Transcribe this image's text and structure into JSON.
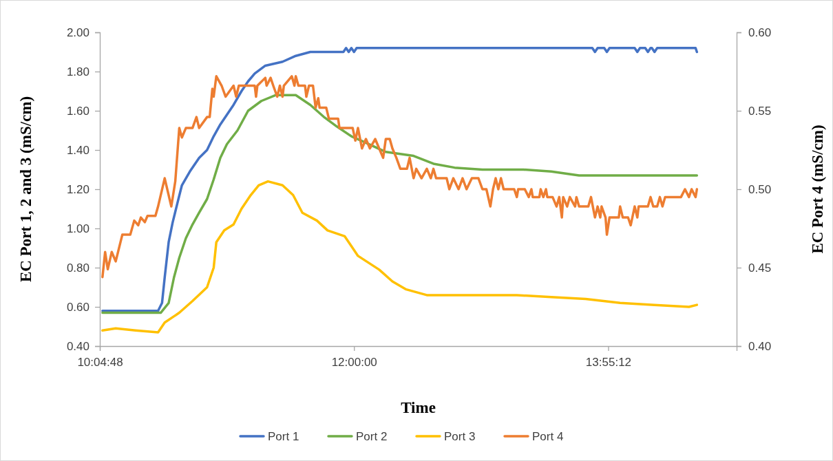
{
  "chart_data": {
    "type": "line",
    "xlabel": "Time",
    "ylabel": "EC Port 1, 2 and 3 (mS/cm)",
    "y2label": "EC Port 4 (mS/cm)",
    "xlim": [
      10.08,
      14.89
    ],
    "xticks": [
      {
        "value": 10.08,
        "label": "10:04:48"
      },
      {
        "value": 12,
        "label": "12:00:00"
      },
      {
        "value": 13.92,
        "label": "13:55:12"
      }
    ],
    "ylim": [
      0.4,
      2.0
    ],
    "yticks": [
      {
        "value": 0.4,
        "label": "0.40"
      },
      {
        "value": 0.6,
        "label": "0.60"
      },
      {
        "value": 0.8,
        "label": "0.80"
      },
      {
        "value": 1.0,
        "label": "1.00"
      },
      {
        "value": 1.2,
        "label": "1.20"
      },
      {
        "value": 1.4,
        "label": "1.40"
      },
      {
        "value": 1.6,
        "label": "1.60"
      },
      {
        "value": 1.8,
        "label": "1.80"
      },
      {
        "value": 2.0,
        "label": "2.00"
      }
    ],
    "y2lim": [
      0.4,
      0.6
    ],
    "y2ticks": [
      {
        "value": 0.4,
        "label": "0.40"
      },
      {
        "value": 0.45,
        "label": "0.45"
      },
      {
        "value": 0.5,
        "label": "0.50"
      },
      {
        "value": 0.55,
        "label": "0.55"
      },
      {
        "value": 0.6,
        "label": "0.60"
      }
    ],
    "grid": false,
    "legend": "bottom",
    "marker": "none",
    "line_style": "solid",
    "series": [
      {
        "name": "Port 1",
        "color": "#4472c4",
        "x": [
          10.1,
          10.52,
          10.55,
          10.57,
          10.6,
          10.63,
          10.67,
          10.7,
          10.76,
          10.83,
          10.89,
          10.94,
          10.99,
          11.04,
          11.09,
          11.15,
          11.2,
          11.25,
          11.33,
          11.46,
          11.56,
          11.67,
          11.92,
          11.94,
          11.96,
          11.98,
          12.0,
          12.02,
          13.8,
          13.82,
          13.84,
          13.89,
          13.91,
          13.93,
          14.12,
          14.14,
          14.16,
          14.2,
          14.22,
          14.24,
          14.25,
          14.27,
          14.29,
          14.58,
          14.59
        ],
        "values": [
          0.58,
          0.58,
          0.62,
          0.75,
          0.93,
          1.03,
          1.14,
          1.22,
          1.29,
          1.36,
          1.4,
          1.47,
          1.53,
          1.58,
          1.63,
          1.7,
          1.75,
          1.79,
          1.83,
          1.85,
          1.88,
          1.9,
          1.9,
          1.92,
          1.9,
          1.92,
          1.9,
          1.92,
          1.92,
          1.9,
          1.92,
          1.92,
          1.9,
          1.92,
          1.92,
          1.9,
          1.92,
          1.92,
          1.9,
          1.92,
          1.92,
          1.9,
          1.92,
          1.92,
          1.9
        ]
      },
      {
        "name": "Port 2",
        "color": "#70ad47",
        "x": [
          10.1,
          10.54,
          10.6,
          10.64,
          10.68,
          10.73,
          10.78,
          10.83,
          10.89,
          10.94,
          10.99,
          11.04,
          11.12,
          11.2,
          11.3,
          11.41,
          11.56,
          11.67,
          11.77,
          11.87,
          11.98,
          12.08,
          12.24,
          12.45,
          12.6,
          12.76,
          12.97,
          13.28,
          13.49,
          13.7,
          14.01,
          14.32,
          14.53,
          14.59
        ],
        "values": [
          0.57,
          0.57,
          0.62,
          0.75,
          0.85,
          0.95,
          1.02,
          1.08,
          1.15,
          1.25,
          1.36,
          1.43,
          1.5,
          1.6,
          1.65,
          1.68,
          1.68,
          1.63,
          1.57,
          1.52,
          1.47,
          1.44,
          1.39,
          1.37,
          1.33,
          1.31,
          1.3,
          1.3,
          1.29,
          1.27,
          1.27,
          1.27,
          1.27,
          1.27
        ]
      },
      {
        "name": "Port 3",
        "color": "#ffc000",
        "x": [
          10.1,
          10.2,
          10.35,
          10.52,
          10.57,
          10.68,
          10.78,
          10.89,
          10.94,
          10.96,
          11.02,
          11.09,
          11.15,
          11.22,
          11.28,
          11.35,
          11.46,
          11.54,
          11.61,
          11.72,
          11.8,
          11.93,
          12.03,
          12.19,
          12.29,
          12.39,
          12.55,
          12.71,
          12.97,
          13.23,
          13.49,
          13.75,
          14.01,
          14.27,
          14.53,
          14.59
        ],
        "values": [
          0.48,
          0.49,
          0.48,
          0.47,
          0.52,
          0.57,
          0.63,
          0.7,
          0.8,
          0.93,
          0.99,
          1.02,
          1.1,
          1.17,
          1.22,
          1.24,
          1.22,
          1.17,
          1.08,
          1.04,
          0.99,
          0.96,
          0.86,
          0.79,
          0.73,
          0.69,
          0.66,
          0.66,
          0.66,
          0.66,
          0.65,
          0.64,
          0.62,
          0.61,
          0.6,
          0.61
        ]
      },
      {
        "name": "Port 4",
        "color": "#ed7d31",
        "axis": "y2",
        "x": [
          10.1,
          10.12,
          10.14,
          10.17,
          10.2,
          10.25,
          10.31,
          10.34,
          10.37,
          10.39,
          10.42,
          10.44,
          10.5,
          10.52,
          10.57,
          10.62,
          10.65,
          10.68,
          10.7,
          10.73,
          10.78,
          10.81,
          10.83,
          10.89,
          10.91,
          10.93,
          10.94,
          10.96,
          11.0,
          11.03,
          11.09,
          11.11,
          11.13,
          11.25,
          11.26,
          11.27,
          11.33,
          11.34,
          11.37,
          11.39,
          11.42,
          11.44,
          11.46,
          11.47,
          11.53,
          11.55,
          11.56,
          11.58,
          11.63,
          11.64,
          11.66,
          11.69,
          11.71,
          11.73,
          11.74,
          11.79,
          11.81,
          11.88,
          11.89,
          11.99,
          12.01,
          12.03,
          12.06,
          12.09,
          12.12,
          12.16,
          12.19,
          12.22,
          12.24,
          12.27,
          12.29,
          12.32,
          12.35,
          12.4,
          12.42,
          12.45,
          12.47,
          12.51,
          12.55,
          12.58,
          12.6,
          12.62,
          12.7,
          12.72,
          12.75,
          12.79,
          12.82,
          12.85,
          12.89,
          12.94,
          12.97,
          13.0,
          13.03,
          13.05,
          13.07,
          13.09,
          13.11,
          13.13,
          13.21,
          13.23,
          13.24,
          13.29,
          13.32,
          13.34,
          13.35,
          13.4,
          13.41,
          13.43,
          13.45,
          13.46,
          13.5,
          13.53,
          13.55,
          13.57,
          13.58,
          13.61,
          13.63,
          13.67,
          13.68,
          13.7,
          13.77,
          13.79,
          13.82,
          13.84,
          13.86,
          13.87,
          13.9,
          13.91,
          13.93,
          14.0,
          14.01,
          14.03,
          14.07,
          14.09,
          14.12,
          14.14,
          14.15,
          14.22,
          14.24,
          14.26,
          14.29,
          14.31,
          14.33,
          14.35,
          14.47,
          14.5,
          14.53,
          14.55,
          14.58,
          14.59
        ],
        "values": [
          0.444,
          0.46,
          0.449,
          0.46,
          0.454,
          0.471,
          0.471,
          0.48,
          0.477,
          0.482,
          0.479,
          0.483,
          0.483,
          0.489,
          0.507,
          0.489,
          0.505,
          0.539,
          0.533,
          0.539,
          0.539,
          0.546,
          0.539,
          0.546,
          0.546,
          0.564,
          0.559,
          0.572,
          0.566,
          0.559,
          0.566,
          0.559,
          0.566,
          0.566,
          0.559,
          0.566,
          0.571,
          0.566,
          0.571,
          0.566,
          0.559,
          0.566,
          0.559,
          0.566,
          0.572,
          0.566,
          0.572,
          0.566,
          0.566,
          0.559,
          0.566,
          0.566,
          0.552,
          0.558,
          0.552,
          0.552,
          0.545,
          0.545,
          0.539,
          0.539,
          0.531,
          0.539,
          0.526,
          0.532,
          0.526,
          0.532,
          0.526,
          0.52,
          0.532,
          0.532,
          0.526,
          0.52,
          0.513,
          0.513,
          0.52,
          0.507,
          0.513,
          0.507,
          0.513,
          0.507,
          0.513,
          0.507,
          0.507,
          0.5,
          0.507,
          0.5,
          0.507,
          0.5,
          0.507,
          0.507,
          0.5,
          0.5,
          0.489,
          0.5,
          0.507,
          0.5,
          0.507,
          0.5,
          0.5,
          0.495,
          0.5,
          0.5,
          0.495,
          0.5,
          0.495,
          0.495,
          0.5,
          0.495,
          0.5,
          0.495,
          0.495,
          0.489,
          0.495,
          0.482,
          0.495,
          0.489,
          0.495,
          0.489,
          0.495,
          0.489,
          0.489,
          0.495,
          0.482,
          0.489,
          0.482,
          0.489,
          0.482,
          0.471,
          0.482,
          0.482,
          0.489,
          0.482,
          0.482,
          0.477,
          0.489,
          0.482,
          0.489,
          0.489,
          0.495,
          0.489,
          0.489,
          0.495,
          0.489,
          0.495,
          0.495,
          0.5,
          0.495,
          0.5,
          0.495,
          0.5
        ]
      }
    ]
  }
}
